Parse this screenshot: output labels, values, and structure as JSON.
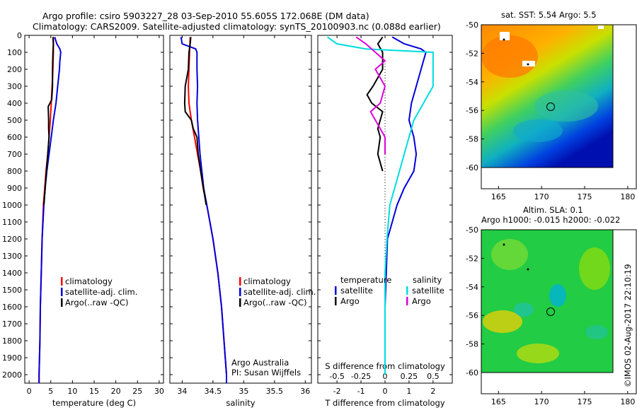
{
  "header": {
    "line1": "Argo profile: csiro 5903227_28 03-Sep-2010 55.605S 172.068E (DM data)",
    "line2": "Climatology: CARS2009. Satellite-adjusted climatology: synTS_20100903.nc (0.088d earlier)"
  },
  "colors": {
    "climatology": "#ff0000",
    "satellite": "#0000dd",
    "argo": "#000000",
    "sal_satellite": "#00dddd",
    "sal_argo": "#dd00dd"
  },
  "legend_main": {
    "climatology": "climatology",
    "satellite": "satellite-adj. clim.",
    "argo": "Argo(..raw -QC)"
  },
  "legend_diff": {
    "temperature": "temperature",
    "salinity": "salinity",
    "t_sat": "satellite",
    "t_argo": "Argo",
    "s_sat": "satellite",
    "s_argo": "Argo"
  },
  "credit": {
    "line1": "Argo Australia",
    "line2": "PI: Susan Wijffels"
  },
  "watermark": "©IMOS 02-Aug-2017 22:10:19",
  "map_sst": {
    "title": "sat. SST: 5.54  Argo: 5.5"
  },
  "map_sla": {
    "title1": "Altim. SLA: 0.1",
    "title2": "Argo h1000: -0.015 h2000: -0.022"
  },
  "chart_data": [
    {
      "type": "line",
      "xlabel": "temperature (deg C)",
      "ylim": [
        2050,
        0
      ],
      "xlim": [
        -1,
        31
      ],
      "x_ticks": [
        0,
        5,
        10,
        15,
        20,
        25,
        30
      ],
      "y_ticks": [
        0,
        100,
        200,
        300,
        400,
        500,
        600,
        700,
        800,
        900,
        1000,
        1100,
        1200,
        1300,
        1400,
        1500,
        1600,
        1700,
        1800,
        1900,
        2000
      ],
      "series": [
        {
          "name": "climatology",
          "depth": [
            10,
            50,
            100,
            200,
            300,
            400,
            500,
            600,
            700,
            800,
            900,
            1000,
            1200,
            1400,
            1600,
            1800,
            2000,
            2050
          ],
          "values": [
            5.6,
            5.6,
            5.6,
            5.5,
            5.3,
            5.1,
            4.9,
            4.6,
            4.3,
            3.9,
            3.6,
            3.3,
            3.0,
            2.8,
            2.6,
            2.5,
            2.3,
            2.3
          ]
        },
        {
          "name": "satellite-adj. clim.",
          "depth": [
            10,
            50,
            80,
            100,
            150,
            200,
            300,
            400,
            500,
            600,
            700,
            800,
            900,
            1000,
            1200,
            1400,
            1600,
            1800,
            2000,
            2050
          ],
          "values": [
            5.9,
            6.4,
            7.1,
            7.3,
            7.1,
            7.0,
            6.6,
            6.2,
            5.6,
            5.1,
            4.6,
            4.1,
            3.7,
            3.4,
            3.0,
            2.8,
            2.6,
            2.5,
            2.3,
            2.3
          ]
        },
        {
          "name": "Argo(..raw -QC)",
          "depth": [
            10,
            50,
            100,
            200,
            300,
            380,
            420,
            500,
            550,
            600,
            700,
            800,
            900,
            1000
          ],
          "values": [
            5.5,
            5.6,
            5.5,
            5.4,
            5.4,
            5.2,
            4.4,
            4.5,
            4.5,
            4.6,
            4.3,
            4.0,
            3.7,
            3.4
          ]
        }
      ]
    },
    {
      "type": "line",
      "xlabel": "salinity",
      "ylim": [
        2050,
        0
      ],
      "xlim": [
        33.8,
        36.1
      ],
      "x_ticks": [
        34,
        34.5,
        35,
        35.5,
        36
      ],
      "x_tick_labels": [
        "34",
        "34.5",
        "35",
        "35.5",
        "36"
      ],
      "series": [
        {
          "name": "climatology",
          "depth": [
            10,
            100,
            200,
            300,
            400,
            500,
            600,
            700,
            800,
            900,
            1000,
            1200,
            1400,
            1600,
            1800,
            2000,
            2050
          ],
          "values": [
            34.13,
            34.12,
            34.11,
            34.1,
            34.11,
            34.15,
            34.2,
            34.25,
            34.3,
            34.34,
            34.4,
            34.5,
            34.58,
            34.64,
            34.68,
            34.72,
            34.72
          ]
        },
        {
          "name": "satellite-adj. clim.",
          "depth": [
            10,
            50,
            80,
            100,
            200,
            300,
            400,
            500,
            600,
            700,
            800,
            900,
            1000,
            1200,
            1400,
            1600,
            1800,
            2000,
            2050
          ],
          "values": [
            33.98,
            34.0,
            34.22,
            34.24,
            34.24,
            34.25,
            34.24,
            34.25,
            34.27,
            34.29,
            34.32,
            34.35,
            34.4,
            34.5,
            34.58,
            34.64,
            34.68,
            34.72,
            34.72
          ]
        },
        {
          "name": "Argo(..raw -QC)",
          "depth": [
            10,
            50,
            100,
            200,
            300,
            400,
            450,
            500,
            550,
            600,
            700,
            800,
            1000
          ],
          "values": [
            34.14,
            34.13,
            34.11,
            34.1,
            34.05,
            34.04,
            34.05,
            34.15,
            34.18,
            34.24,
            34.26,
            34.3,
            34.39
          ]
        }
      ]
    },
    {
      "type": "line",
      "xlabel": "T difference from climatology",
      "x2label": "S difference from climatology",
      "ylim": [
        2050,
        0
      ],
      "xlim": [
        -2.8,
        2.8
      ],
      "x_ticks": [
        -2,
        -1,
        0,
        1,
        2
      ],
      "x2_ticks": [
        -0.5,
        -0.25,
        0,
        0.25,
        0.5
      ],
      "series": [
        {
          "name": "temperature satellite",
          "depth": [
            10,
            50,
            80,
            100,
            150,
            200,
            300,
            400,
            500,
            600,
            700,
            800,
            900,
            1000,
            1100,
            1200,
            1400,
            1600,
            1800,
            2000
          ],
          "values": [
            0.3,
            0.8,
            1.5,
            1.7,
            1.6,
            1.5,
            1.3,
            1.1,
            1.0,
            1.2,
            1.3,
            1.2,
            0.8,
            0.5,
            0.3,
            0.1,
            0.05,
            0.0,
            0.0,
            0.0
          ]
        },
        {
          "name": "temperature Argo",
          "depth": [
            10,
            50,
            100,
            150,
            200,
            300,
            350,
            400,
            450,
            500,
            550,
            600,
            700,
            800
          ],
          "values": [
            -0.1,
            -0.3,
            -0.1,
            -0.1,
            -0.1,
            -0.5,
            -0.75,
            -0.55,
            -0.1,
            -0.2,
            -0.3,
            -0.2,
            -0.3,
            -0.1
          ]
        },
        {
          "name": "salinity satellite",
          "depth": [
            10,
            50,
            80,
            100,
            150,
            200,
            300,
            400,
            500,
            600,
            700,
            800,
            900,
            1000,
            1200,
            1400,
            1600,
            1800,
            2000
          ],
          "values": [
            -0.6,
            -0.5,
            -0.2,
            0.5,
            0.5,
            0.5,
            0.5,
            0.4,
            0.3,
            0.25,
            0.2,
            0.15,
            0.1,
            0.05,
            0.02,
            0.0,
            0.0,
            0.0,
            0.0
          ]
        },
        {
          "name": "salinity Argo",
          "depth": [
            10,
            50,
            100,
            150,
            200,
            300,
            400,
            450,
            500,
            550,
            600,
            700
          ],
          "values": [
            -0.3,
            -0.2,
            -0.1,
            0.0,
            -0.1,
            0.0,
            -0.05,
            -0.15,
            -0.1,
            -0.05,
            0.0,
            0.0
          ]
        }
      ]
    },
    {
      "type": "heatmap",
      "title": "sat. SST: 5.54  Argo: 5.5",
      "x_ticks": [
        165,
        170,
        175,
        180
      ],
      "y_ticks": [
        -50,
        -52,
        -54,
        -56,
        -58,
        -60
      ]
    },
    {
      "type": "heatmap",
      "title": "Altim. SLA: 0.1 / Argo h1000: -0.015 h2000: -0.022",
      "x_ticks": [
        165,
        170,
        175,
        180
      ],
      "y_ticks": [
        -50,
        -52,
        -54,
        -56,
        -58,
        -60
      ]
    }
  ]
}
